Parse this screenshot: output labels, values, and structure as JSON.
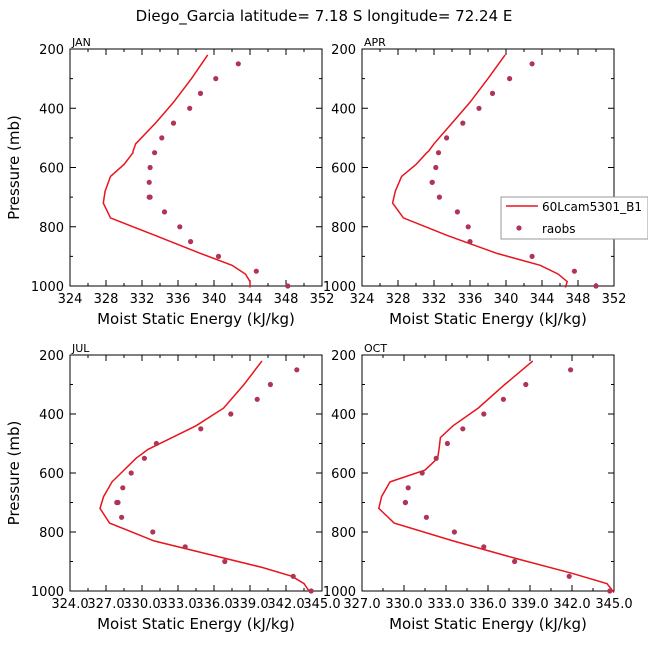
{
  "figure": {
    "title": "Diego_Garcia   latitude= 7.18 S longitude= 72.24 E"
  },
  "colors": {
    "model_line": "#e8141c",
    "raobs_marker": "#b03456",
    "axis": "#000000",
    "background": "#ffffff"
  },
  "legend": {
    "model_label": "60Lcam5301_B1",
    "raobs_label": "raobs",
    "placement": "right, inside APR panel"
  },
  "chart_data": [
    {
      "type": "line",
      "panel_label": "JAN",
      "xlabel": "Moist Static Energy (kJ/kg)",
      "ylabel": "Pressure (mb)",
      "xlim": [
        324,
        352
      ],
      "ylim": [
        1000,
        200
      ],
      "xticks": [
        324,
        328,
        332,
        336,
        340,
        344,
        348,
        352
      ],
      "xtick_labels": [
        "324",
        "328",
        "332",
        "336",
        "340",
        "344",
        "348",
        "352"
      ],
      "yticks": [
        200,
        400,
        600,
        800,
        1000
      ],
      "ytick_labels": [
        "200",
        "400",
        "600",
        "800",
        "1000"
      ],
      "series": [
        {
          "name": "60Lcam5301_B1",
          "style": "line",
          "x": [
            339.3,
            337.5,
            335.5,
            333.5,
            331.3,
            331.0,
            331.0,
            330.0,
            328.5,
            327.9,
            327.7,
            328.5,
            333.5,
            338.5,
            342.0,
            343.5,
            344.0,
            344.0
          ],
          "y": [
            220,
            300,
            380,
            450,
            520,
            545,
            550,
            590,
            630,
            680,
            720,
            770,
            830,
            890,
            930,
            960,
            985,
            1005
          ]
        },
        {
          "name": "raobs",
          "style": "markers",
          "x": [
            342.7,
            340.2,
            338.5,
            337.3,
            335.5,
            334.2,
            333.4,
            332.9,
            332.8,
            332.8,
            332.9,
            334.5,
            336.2,
            337.4,
            340.5,
            344.7,
            348.2
          ],
          "y": [
            250,
            300,
            350,
            400,
            450,
            500,
            550,
            600,
            650,
            700,
            700,
            750,
            800,
            850,
            900,
            950,
            1000
          ]
        }
      ]
    },
    {
      "type": "line",
      "panel_label": "APR",
      "xlabel": "Moist Static Energy (kJ/kg)",
      "ylabel": "",
      "xlim": [
        324,
        352
      ],
      "ylim": [
        1000,
        200
      ],
      "xticks": [
        324,
        328,
        332,
        336,
        340,
        344,
        348,
        352
      ],
      "xtick_labels": [
        "324",
        "328",
        "332",
        "336",
        "340",
        "344",
        "348",
        "352"
      ],
      "yticks": [
        200,
        400,
        600,
        800,
        1000
      ],
      "ytick_labels": [
        "200",
        "400",
        "600",
        "800",
        "1000"
      ],
      "series": [
        {
          "name": "60Lcam5301_B1",
          "style": "line",
          "x": [
            339.9,
            338.0,
            336.0,
            334.0,
            332.0,
            331.4,
            331.2,
            330.0,
            328.4,
            327.7,
            327.4,
            328.6,
            333.5,
            339.0,
            343.8,
            345.8,
            346.8,
            346.6
          ],
          "y": [
            220,
            300,
            380,
            450,
            520,
            545,
            550,
            590,
            630,
            680,
            720,
            770,
            830,
            890,
            930,
            960,
            985,
            1005
          ]
        },
        {
          "name": "raobs",
          "style": "markers",
          "x": [
            342.9,
            340.4,
            338.5,
            337.0,
            335.2,
            333.4,
            332.5,
            332.2,
            331.8,
            331.8,
            332.6,
            334.6,
            335.8,
            336.0,
            342.9,
            347.6,
            350.0
          ],
          "y": [
            250,
            300,
            350,
            400,
            450,
            500,
            550,
            600,
            650,
            650,
            700,
            750,
            800,
            850,
            900,
            950,
            1000
          ]
        }
      ]
    },
    {
      "type": "line",
      "panel_label": "JUL",
      "xlabel": "Moist Static Energy (kJ/kg)",
      "ylabel": "Pressure (mb)",
      "xlim": [
        324.0,
        345.0
      ],
      "ylim": [
        1000,
        200
      ],
      "xticks": [
        324.0,
        327.0,
        330.0,
        333.0,
        336.0,
        339.0,
        342.0,
        345.0
      ],
      "xtick_labels": [
        "324.0",
        "327.0",
        "330.0",
        "333.0",
        "336.0",
        "339.0",
        "342.0",
        "345.0"
      ],
      "yticks": [
        200,
        400,
        600,
        800,
        1000
      ],
      "ytick_labels": [
        "200",
        "400",
        "600",
        "800",
        "1000"
      ],
      "series": [
        {
          "name": "60Lcam5301_B1",
          "style": "line",
          "x": [
            340.0,
            338.5,
            336.8,
            334.5,
            332.0,
            330.5,
            329.5,
            328.5,
            327.5,
            326.8,
            326.5,
            327.3,
            331.0,
            336.0,
            340.0,
            342.5,
            343.5,
            344.0
          ],
          "y": [
            220,
            300,
            380,
            440,
            490,
            520,
            550,
            590,
            630,
            680,
            720,
            770,
            830,
            880,
            920,
            950,
            975,
            1005
          ]
        },
        {
          "name": "raobs",
          "style": "markers",
          "x": [
            342.9,
            340.7,
            339.6,
            337.4,
            334.9,
            331.2,
            330.2,
            329.1,
            328.4,
            328.0,
            327.9,
            328.3,
            330.9,
            333.6,
            336.9,
            342.6,
            344.1
          ],
          "y": [
            250,
            300,
            350,
            400,
            450,
            500,
            550,
            600,
            650,
            700,
            700,
            750,
            800,
            850,
            900,
            950,
            1000
          ]
        }
      ]
    },
    {
      "type": "line",
      "panel_label": "OCT",
      "xlabel": "Moist Static Energy (kJ/kg)",
      "ylabel": "",
      "xlim": [
        327.0,
        345.0
      ],
      "ylim": [
        1000,
        200
      ],
      "xticks": [
        327.0,
        330.0,
        333.0,
        336.0,
        339.0,
        342.0,
        345.0
      ],
      "xtick_labels": [
        "327.0",
        "330.0",
        "333.0",
        "336.0",
        "339.0",
        "342.0",
        "345.0"
      ],
      "yticks": [
        200,
        400,
        600,
        800,
        1000
      ],
      "ytick_labels": [
        "200",
        "400",
        "600",
        "800",
        "1000"
      ],
      "series": [
        {
          "name": "60Lcam5301_B1",
          "style": "line",
          "x": [
            339.2,
            337.2,
            335.3,
            333.5,
            332.6,
            332.5,
            332.4,
            331.5,
            329.0,
            328.4,
            328.2,
            329.3,
            333.5,
            338.0,
            342.0,
            344.5,
            345.0
          ],
          "y": [
            220,
            300,
            380,
            440,
            480,
            520,
            550,
            590,
            630,
            680,
            720,
            770,
            830,
            890,
            940,
            975,
            1005
          ]
        },
        {
          "name": "raobs",
          "style": "markers",
          "x": [
            341.9,
            338.7,
            337.1,
            335.7,
            334.2,
            333.1,
            332.3,
            331.3,
            330.3,
            330.1,
            330.1,
            331.6,
            333.6,
            335.7,
            337.9,
            341.8,
            344.7
          ],
          "y": [
            250,
            300,
            350,
            400,
            450,
            500,
            550,
            600,
            650,
            700,
            700,
            750,
            800,
            850,
            900,
            950,
            1000
          ]
        }
      ]
    }
  ]
}
